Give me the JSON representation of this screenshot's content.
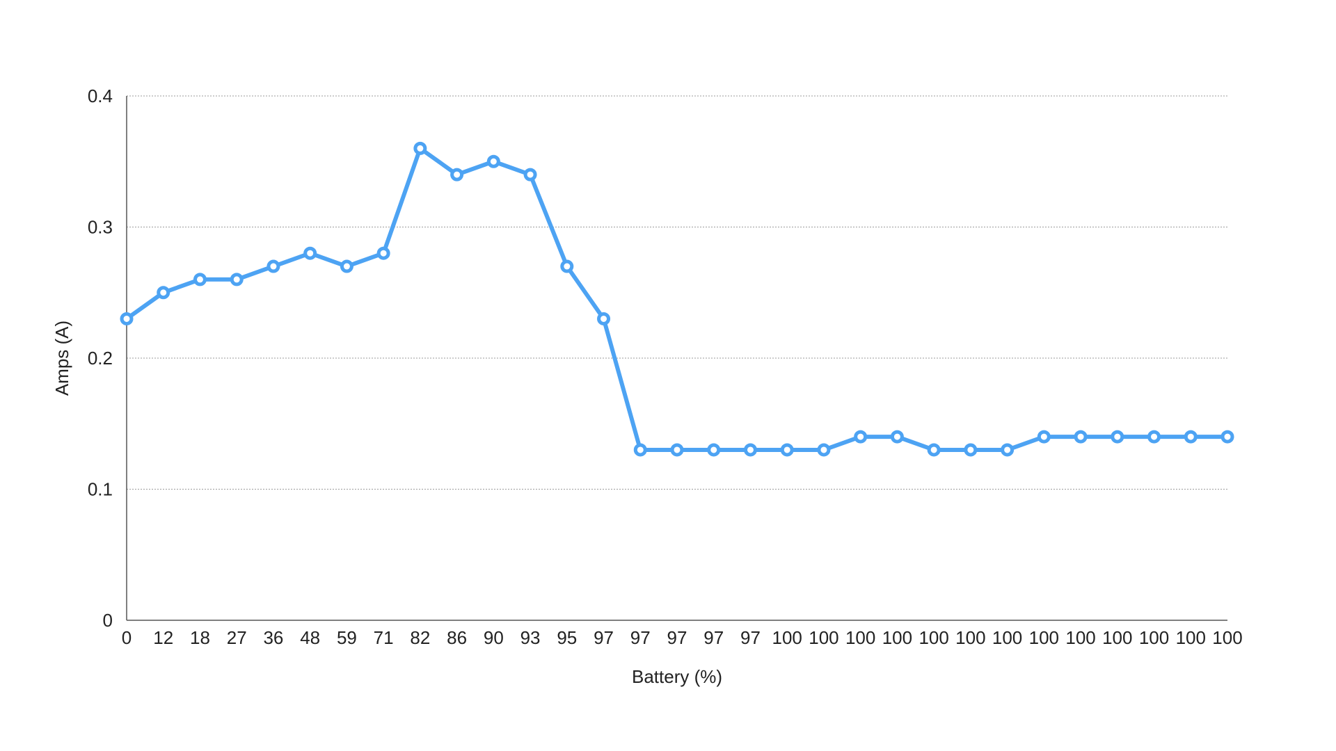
{
  "chart_data": {
    "type": "line",
    "title": "",
    "xlabel": "Battery (%)",
    "ylabel": "Amps (A)",
    "categories": [
      "0",
      "12",
      "18",
      "27",
      "36",
      "48",
      "59",
      "71",
      "82",
      "86",
      "90",
      "93",
      "95",
      "97",
      "97",
      "97",
      "97",
      "97",
      "100",
      "100",
      "100",
      "100",
      "100",
      "100",
      "100",
      "100",
      "100",
      "100",
      "100",
      "100",
      "100"
    ],
    "series": [
      {
        "values": [
          0.23,
          0.25,
          0.26,
          0.26,
          0.27,
          0.28,
          0.27,
          0.28,
          0.36,
          0.34,
          0.35,
          0.34,
          0.27,
          0.23,
          0.13,
          0.13,
          0.13,
          0.13,
          0.13,
          0.13,
          0.14,
          0.14,
          0.13,
          0.13,
          0.13,
          0.14,
          0.14,
          0.14,
          0.14,
          0.14,
          0.14
        ]
      }
    ],
    "ylim": [
      0,
      0.4
    ],
    "yticks": [
      "0",
      "0.1",
      "0.2",
      "0.3",
      "0.4"
    ],
    "ytick_values": [
      0,
      0.1,
      0.2,
      0.3,
      0.4
    ],
    "grid": true,
    "legend": "none",
    "colors": {
      "line": "#4da3f3",
      "grid": "#9a9a9a",
      "axis": "#555555"
    }
  }
}
